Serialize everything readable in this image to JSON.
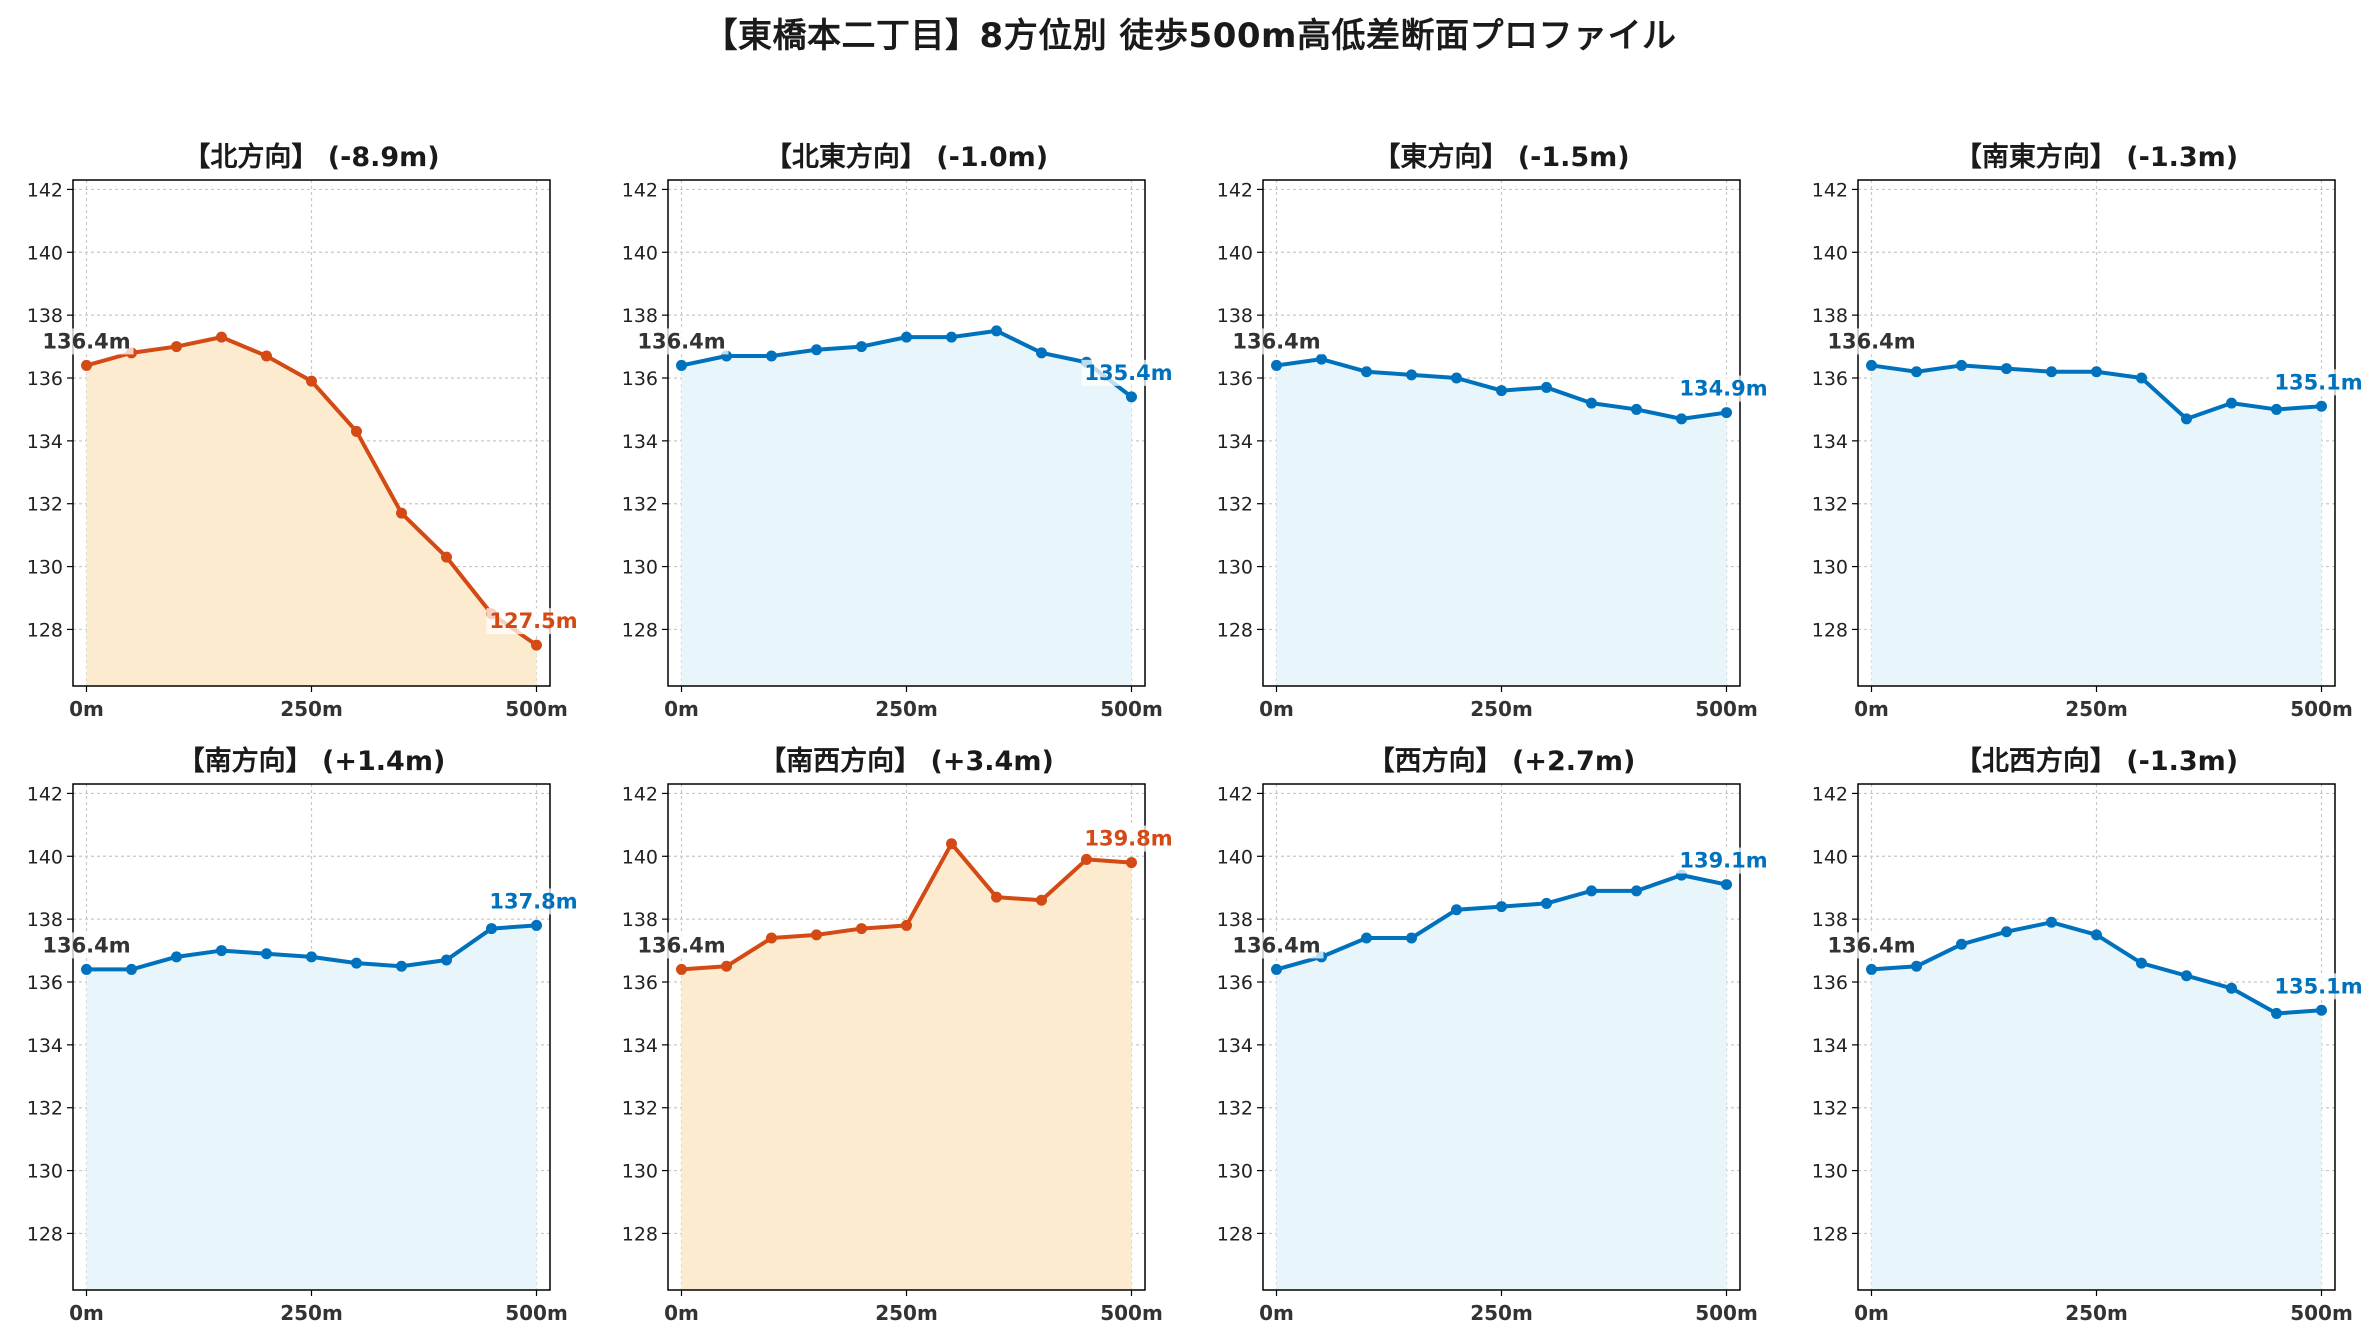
{
  "figure_title": "【東橋本二丁目】8方位別 徒歩500m高低差断面プロファイル",
  "colors": {
    "down_line": "#0072bd",
    "down_fill": "#e8f5fb",
    "up_line": "#d44a15",
    "up_fill": "#fdebd0",
    "grid": "#c8c8c8",
    "axis": "#000000",
    "start_label": "#333333"
  },
  "chart_data": [
    {
      "type": "area",
      "title": "【北方向】 (-8.9m)",
      "color_scheme": "orange",
      "x": [
        0,
        50,
        100,
        150,
        200,
        250,
        300,
        350,
        400,
        450,
        500
      ],
      "values": [
        136.4,
        136.8,
        137.0,
        137.3,
        136.7,
        135.9,
        134.3,
        131.7,
        130.3,
        128.5,
        127.5
      ],
      "start_label": "136.4m",
      "end_label": "127.5m",
      "end_label_pos": "above",
      "xticks": [
        0,
        250,
        500
      ],
      "xtick_labels": [
        "0m",
        "250m",
        "500m"
      ],
      "yticks": [
        128,
        130,
        132,
        134,
        136,
        138,
        140,
        142
      ],
      "ytick_labels": [
        "128",
        "130",
        "132",
        "134",
        "136",
        "138",
        "140",
        "142"
      ],
      "xlim": [
        -15,
        515
      ],
      "ylim": [
        126.2,
        142.3
      ],
      "grid": true
    },
    {
      "type": "area",
      "title": "【北東方向】 (-1.0m)",
      "color_scheme": "blue",
      "x": [
        0,
        50,
        100,
        150,
        200,
        250,
        300,
        350,
        400,
        450,
        500
      ],
      "values": [
        136.4,
        136.7,
        136.7,
        136.9,
        137.0,
        137.3,
        137.3,
        137.5,
        136.8,
        136.5,
        135.4
      ],
      "start_label": "136.4m",
      "end_label": "135.4m",
      "end_label_pos": "above",
      "xticks": [
        0,
        250,
        500
      ],
      "xtick_labels": [
        "0m",
        "250m",
        "500m"
      ],
      "yticks": [
        128,
        130,
        132,
        134,
        136,
        138,
        140,
        142
      ],
      "ytick_labels": [
        "128",
        "130",
        "132",
        "134",
        "136",
        "138",
        "140",
        "142"
      ],
      "xlim": [
        -15,
        515
      ],
      "ylim": [
        126.2,
        142.3
      ],
      "grid": true
    },
    {
      "type": "area",
      "title": "【東方向】 (-1.5m)",
      "color_scheme": "blue",
      "x": [
        0,
        50,
        100,
        150,
        200,
        250,
        300,
        350,
        400,
        450,
        500
      ],
      "values": [
        136.4,
        136.6,
        136.2,
        136.1,
        136.0,
        135.6,
        135.7,
        135.2,
        135.0,
        134.7,
        134.9
      ],
      "start_label": "136.4m",
      "end_label": "134.9m",
      "end_label_pos": "above",
      "xticks": [
        0,
        250,
        500
      ],
      "xtick_labels": [
        "0m",
        "250m",
        "500m"
      ],
      "yticks": [
        128,
        130,
        132,
        134,
        136,
        138,
        140,
        142
      ],
      "ytick_labels": [
        "128",
        "130",
        "132",
        "134",
        "136",
        "138",
        "140",
        "142"
      ],
      "xlim": [
        -15,
        515
      ],
      "ylim": [
        126.2,
        142.3
      ],
      "grid": true
    },
    {
      "type": "area",
      "title": "【南東方向】 (-1.3m)",
      "color_scheme": "blue",
      "x": [
        0,
        50,
        100,
        150,
        200,
        250,
        300,
        350,
        400,
        450,
        500
      ],
      "values": [
        136.4,
        136.2,
        136.4,
        136.3,
        136.2,
        136.2,
        136.0,
        134.7,
        135.2,
        135.0,
        135.1
      ],
      "start_label": "136.4m",
      "end_label": "135.1m",
      "end_label_pos": "above",
      "xticks": [
        0,
        250,
        500
      ],
      "xtick_labels": [
        "0m",
        "250m",
        "500m"
      ],
      "yticks": [
        128,
        130,
        132,
        134,
        136,
        138,
        140,
        142
      ],
      "ytick_labels": [
        "128",
        "130",
        "132",
        "134",
        "136",
        "138",
        "140",
        "142"
      ],
      "xlim": [
        -15,
        515
      ],
      "ylim": [
        126.2,
        142.3
      ],
      "grid": true
    },
    {
      "type": "area",
      "title": "【南方向】 (+1.4m)",
      "color_scheme": "blue",
      "x": [
        0,
        50,
        100,
        150,
        200,
        250,
        300,
        350,
        400,
        450,
        500
      ],
      "values": [
        136.4,
        136.4,
        136.8,
        137.0,
        136.9,
        136.8,
        136.6,
        136.5,
        136.7,
        137.7,
        137.8
      ],
      "start_label": "136.4m",
      "end_label": "137.8m",
      "end_label_pos": "above",
      "xticks": [
        0,
        250,
        500
      ],
      "xtick_labels": [
        "0m",
        "250m",
        "500m"
      ],
      "yticks": [
        128,
        130,
        132,
        134,
        136,
        138,
        140,
        142
      ],
      "ytick_labels": [
        "128",
        "130",
        "132",
        "134",
        "136",
        "138",
        "140",
        "142"
      ],
      "xlim": [
        -15,
        515
      ],
      "ylim": [
        126.2,
        142.3
      ],
      "grid": true
    },
    {
      "type": "area",
      "title": "【南西方向】 (+3.4m)",
      "color_scheme": "orange",
      "x": [
        0,
        50,
        100,
        150,
        200,
        250,
        300,
        350,
        400,
        450,
        500
      ],
      "values": [
        136.4,
        136.5,
        137.4,
        137.5,
        137.7,
        137.8,
        140.4,
        138.7,
        138.6,
        139.9,
        139.8
      ],
      "start_label": "136.4m",
      "end_label": "139.8m",
      "end_label_pos": "above",
      "xticks": [
        0,
        250,
        500
      ],
      "xtick_labels": [
        "0m",
        "250m",
        "500m"
      ],
      "yticks": [
        128,
        130,
        132,
        134,
        136,
        138,
        140,
        142
      ],
      "ytick_labels": [
        "128",
        "130",
        "132",
        "134",
        "136",
        "138",
        "140",
        "142"
      ],
      "xlim": [
        -15,
        515
      ],
      "ylim": [
        126.2,
        142.3
      ],
      "grid": true
    },
    {
      "type": "area",
      "title": "【西方向】 (+2.7m)",
      "color_scheme": "blue",
      "x": [
        0,
        50,
        100,
        150,
        200,
        250,
        300,
        350,
        400,
        450,
        500
      ],
      "values": [
        136.4,
        136.8,
        137.4,
        137.4,
        138.3,
        138.4,
        138.5,
        138.9,
        138.9,
        139.4,
        139.1
      ],
      "start_label": "136.4m",
      "end_label": "139.1m",
      "end_label_pos": "above",
      "xticks": [
        0,
        250,
        500
      ],
      "xtick_labels": [
        "0m",
        "250m",
        "500m"
      ],
      "yticks": [
        128,
        130,
        132,
        134,
        136,
        138,
        140,
        142
      ],
      "ytick_labels": [
        "128",
        "130",
        "132",
        "134",
        "136",
        "138",
        "140",
        "142"
      ],
      "xlim": [
        -15,
        515
      ],
      "ylim": [
        126.2,
        142.3
      ],
      "grid": true
    },
    {
      "type": "area",
      "title": "【北西方向】 (-1.3m)",
      "color_scheme": "blue",
      "x": [
        0,
        50,
        100,
        150,
        200,
        250,
        300,
        350,
        400,
        450,
        500
      ],
      "values": [
        136.4,
        136.5,
        137.2,
        137.6,
        137.9,
        137.5,
        136.6,
        136.2,
        135.8,
        135.0,
        135.1
      ],
      "start_label": "136.4m",
      "end_label": "135.1m",
      "end_label_pos": "above",
      "xticks": [
        0,
        250,
        500
      ],
      "xtick_labels": [
        "0m",
        "250m",
        "500m"
      ],
      "yticks": [
        128,
        130,
        132,
        134,
        136,
        138,
        140,
        142
      ],
      "ytick_labels": [
        "128",
        "130",
        "132",
        "134",
        "136",
        "138",
        "140",
        "142"
      ],
      "xlim": [
        -15,
        515
      ],
      "ylim": [
        126.2,
        142.3
      ],
      "grid": true
    }
  ]
}
